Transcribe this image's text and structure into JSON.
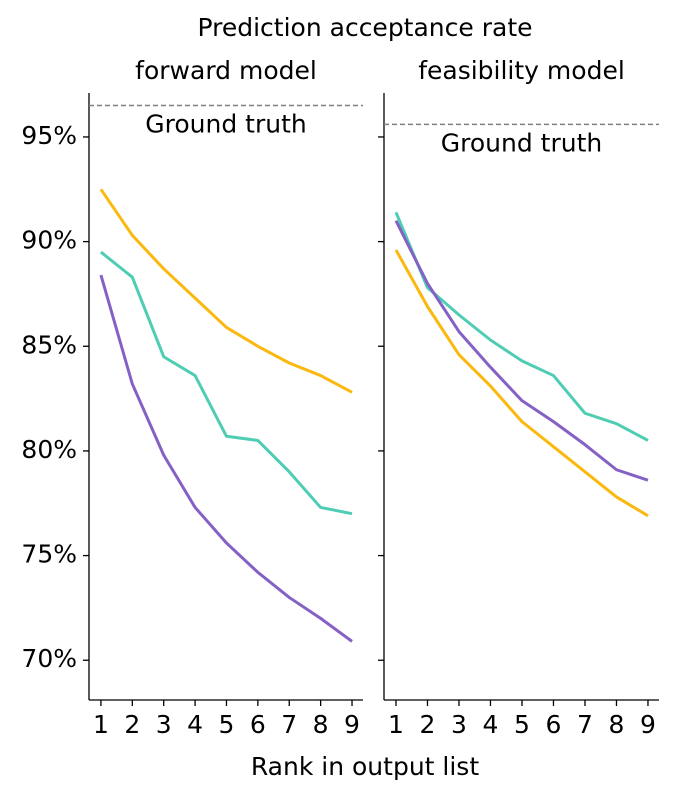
{
  "title": "Prediction acceptance rate",
  "xlabel": "Rank in output list",
  "chart_data": [
    {
      "type": "line",
      "title": "forward model",
      "x": [
        1,
        2,
        3,
        4,
        5,
        6,
        7,
        8,
        9
      ],
      "series": [
        {
          "color": "#fbb80f",
          "values": [
            92.5,
            90.3,
            88.7,
            87.3,
            85.9,
            85.0,
            84.2,
            83.6,
            82.8
          ]
        },
        {
          "color": "#4ecdb4",
          "values": [
            89.5,
            88.3,
            84.5,
            83.6,
            80.7,
            80.5,
            79.0,
            77.3,
            77.0
          ]
        },
        {
          "color": "#8561c5",
          "values": [
            88.4,
            83.2,
            79.8,
            77.3,
            75.6,
            74.2,
            73.0,
            72.0,
            70.9
          ]
        }
      ],
      "reference": {
        "text": "Ground truth",
        "value": 96.5,
        "color": "#808080"
      },
      "xlim": [
        0.62,
        9.35
      ],
      "xticks": [
        1,
        2,
        3,
        4,
        5,
        6,
        7,
        8,
        9
      ],
      "ylim": [
        68.1,
        97.1
      ],
      "yticks": [
        {
          "value": 70,
          "label": "70%"
        },
        {
          "value": 75,
          "label": "75%"
        },
        {
          "value": 80,
          "label": "80%"
        },
        {
          "value": 85,
          "label": "85%"
        },
        {
          "value": 90,
          "label": "90%"
        },
        {
          "value": 95,
          "label": "95%"
        }
      ]
    },
    {
      "type": "line",
      "title": "feasibility model",
      "x": [
        1,
        2,
        3,
        4,
        5,
        6,
        7,
        8,
        9
      ],
      "series": [
        {
          "color": "#fbb80f",
          "values": [
            89.6,
            86.9,
            84.6,
            83.1,
            81.4,
            80.2,
            79.0,
            77.8,
            76.9
          ]
        },
        {
          "color": "#4ecdb4",
          "values": [
            91.4,
            87.8,
            86.5,
            85.3,
            84.3,
            83.6,
            81.8,
            81.3,
            80.5
          ]
        },
        {
          "color": "#8561c5",
          "values": [
            91.0,
            88.0,
            85.7,
            84.0,
            82.4,
            81.4,
            80.3,
            79.1,
            78.6
          ]
        }
      ],
      "reference": {
        "text": "Ground truth",
        "value": 95.6,
        "color": "#808080"
      },
      "xlim": [
        0.62,
        9.35
      ],
      "xticks": [
        1,
        2,
        3,
        4,
        5,
        6,
        7,
        8,
        9
      ],
      "ylim": [
        68.1,
        97.1
      ],
      "yticks": [
        70,
        75,
        80,
        85,
        90,
        95
      ]
    }
  ]
}
